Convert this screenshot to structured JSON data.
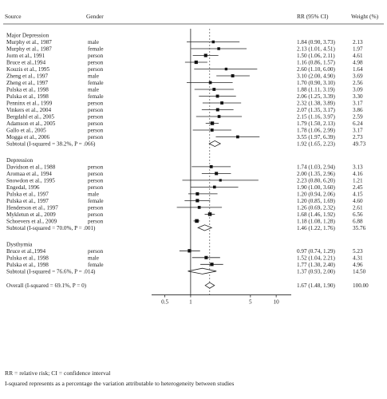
{
  "header": {
    "source": "Source",
    "gender": "Gender",
    "rr": "RR (95% CI)",
    "weight": "Weight (%)"
  },
  "chart_data": {
    "type": "forest",
    "x_scale": "log",
    "xlim": [
      0.35,
      15
    ],
    "reference_line": 1,
    "x_ticks": [
      0.5,
      1,
      5,
      10
    ],
    "groups": [
      {
        "name": "Major Depression",
        "studies": [
          {
            "source": "Murphy et al., 1987",
            "gender": "male",
            "rr": 1.84,
            "lo": 0.9,
            "hi": 3.73,
            "rr_text": "1.84 (0.90, 3.73)",
            "weight": "2.13"
          },
          {
            "source": "Murphy et al., 1987",
            "gender": "female",
            "rr": 2.13,
            "lo": 1.01,
            "hi": 4.51,
            "rr_text": "2.13 (1.01, 4.51)",
            "weight": "1.97"
          },
          {
            "source": "Jorm et al., 1991",
            "gender": "person",
            "rr": 1.5,
            "lo": 1.06,
            "hi": 2.11,
            "rr_text": "1.50 (1.06, 2.11)",
            "weight": "4.61"
          },
          {
            "source": "Bruce et al.,1994",
            "gender": "person",
            "rr": 1.16,
            "lo": 0.86,
            "hi": 1.57,
            "rr_text": "1.16 (0.86, 1.57)",
            "weight": "4.98"
          },
          {
            "source": "Kouzis et al., 1995",
            "gender": "person",
            "rr": 2.6,
            "lo": 1.1,
            "hi": 6.0,
            "rr_text": "2.60 (1.10, 6.00)",
            "weight": "1.64"
          },
          {
            "source": "Zheng et al., 1997",
            "gender": "male",
            "rr": 3.1,
            "lo": 2.0,
            "hi": 4.9,
            "rr_text": "3.10 (2.00, 4.90)",
            "weight": "3.69"
          },
          {
            "source": "Zheng et al., 1997",
            "gender": "female",
            "rr": 1.7,
            "lo": 0.9,
            "hi": 3.1,
            "rr_text": "1.70 (0.90, 3.10)",
            "weight": "2.56"
          },
          {
            "source": "Pulska et al., 1998",
            "gender": "male",
            "rr": 1.88,
            "lo": 1.11,
            "hi": 3.19,
            "rr_text": "1.88 (1.11, 3.19)",
            "weight": "3.09"
          },
          {
            "source": "Pulska et al., 1998",
            "gender": "female",
            "rr": 2.06,
            "lo": 1.25,
            "hi": 3.39,
            "rr_text": "2.06 (1.25, 3.39)",
            "weight": "3.30"
          },
          {
            "source": "Penninx et al., 1999",
            "gender": "person",
            "rr": 2.32,
            "lo": 1.38,
            "hi": 3.89,
            "rr_text": "2.32 (1.38, 3.89)",
            "weight": "3.17"
          },
          {
            "source": "Vinkers et al., 2004",
            "gender": "person",
            "rr": 2.07,
            "lo": 1.35,
            "hi": 3.17,
            "rr_text": "2.07 (1.35, 3.17)",
            "weight": "3.86"
          },
          {
            "source": "Bergdahl et al., 2005",
            "gender": "person",
            "rr": 2.15,
            "lo": 1.16,
            "hi": 3.97,
            "rr_text": "2.15 (1.16, 3.97)",
            "weight": "2.59"
          },
          {
            "source": "Adamson et al., 2005",
            "gender": "person",
            "rr": 1.79,
            "lo": 1.5,
            "hi": 2.13,
            "rr_text": "1.79 (1.50, 2.13)",
            "weight": "6.24"
          },
          {
            "source": "Gallo et al., 2005",
            "gender": "person",
            "rr": 1.78,
            "lo": 1.06,
            "hi": 2.99,
            "rr_text": "1.78 (1.06, 2.99)",
            "weight": "3.17"
          },
          {
            "source": "Mogga et al., 2006",
            "gender": "person",
            "rr": 3.55,
            "lo": 1.97,
            "hi": 6.39,
            "rr_text": "3.55 (1.97, 6.39)",
            "weight": "2.73"
          }
        ],
        "subtotal": {
          "label": "Subtotal (I-squared = 38.2%, P = .066)",
          "rr": 1.92,
          "lo": 1.65,
          "hi": 2.23,
          "rr_text": "1.92 (1.65, 2.23)",
          "weight": "49.73"
        }
      },
      {
        "name": "Depression",
        "studies": [
          {
            "source": "Davidson et al., 1988",
            "gender": "person",
            "rr": 1.74,
            "lo": 1.03,
            "hi": 2.94,
            "rr_text": "1.74 (1.03, 2.94)",
            "weight": "3.13"
          },
          {
            "source": "Aromaa et al., 1994",
            "gender": "person",
            "rr": 2.0,
            "lo": 1.35,
            "hi": 2.96,
            "rr_text": "2.00 (1.35, 2.96)",
            "weight": "4.16"
          },
          {
            "source": "Snowdon et al., 1995",
            "gender": "person",
            "rr": 2.23,
            "lo": 0.8,
            "hi": 6.2,
            "rr_text": "2.23 (0.80, 6.20)",
            "weight": "1.21"
          },
          {
            "source": "Engedal, 1996",
            "gender": "person",
            "rr": 1.9,
            "lo": 1.0,
            "hi": 3.6,
            "rr_text": "1.90 (1.00, 3.60)",
            "weight": "2.45"
          },
          {
            "source": "Pulska et al., 1997",
            "gender": "male",
            "rr": 1.2,
            "lo": 0.94,
            "hi": 2.06,
            "rr_text": "1.20 (0.94, 2.06)",
            "weight": "4.15"
          },
          {
            "source": "Pulska et al., 1997",
            "gender": "female",
            "rr": 1.2,
            "lo": 0.85,
            "hi": 1.69,
            "rr_text": "1.20 (0.85, 1.69)",
            "weight": "4.60"
          },
          {
            "source": "Henderson et al., 1997",
            "gender": "person",
            "rr": 1.26,
            "lo": 0.69,
            "hi": 2.32,
            "rr_text": "1.26 (0.69, 2.32)",
            "weight": "2.61"
          },
          {
            "source": "Mykletun et al., 2009",
            "gender": "person",
            "rr": 1.68,
            "lo": 1.46,
            "hi": 1.92,
            "rr_text": "1.68 (1.46, 1.92)",
            "weight": "6.56"
          },
          {
            "source": "Schoevers et al., 2009",
            "gender": "person",
            "rr": 1.18,
            "lo": 1.08,
            "hi": 1.28,
            "rr_text": "1.18 (1.08, 1.28)",
            "weight": "6.88"
          }
        ],
        "subtotal": {
          "label": "Subtotal (I-squared = 70.0%, P = .001)",
          "rr": 1.46,
          "lo": 1.22,
          "hi": 1.76,
          "rr_text": "1.46 (1.22, 1.76)",
          "weight": "35.76"
        }
      },
      {
        "name": "Dysthymia",
        "studies": [
          {
            "source": "Bruce et al.,1994",
            "gender": "person",
            "rr": 0.97,
            "lo": 0.74,
            "hi": 1.29,
            "rr_text": "0.97 (0.74, 1.29)",
            "weight": "5.23"
          },
          {
            "source": "Pulska et al., 1998",
            "gender": "male",
            "rr": 1.52,
            "lo": 1.04,
            "hi": 2.21,
            "rr_text": "1.52 (1.04, 2.21)",
            "weight": "4.31"
          },
          {
            "source": "Pulska et al., 1998",
            "gender": "female",
            "rr": 1.77,
            "lo": 1.3,
            "hi": 2.4,
            "rr_text": "1.77 (1.30, 2.40)",
            "weight": "4.96"
          }
        ],
        "subtotal": {
          "label": "Subtotal (I-squared = 76.6%, P = .014)",
          "rr": 1.37,
          "lo": 0.93,
          "hi": 2.0,
          "rr_text": "1.37 (0.93, 2.00)",
          "weight": "14.50"
        }
      }
    ],
    "overall": {
      "label": "Overall (I-squared = 69.1%, P = 0)",
      "rr": 1.67,
      "lo": 1.48,
      "hi": 1.9,
      "rr_text": "1.67 (1.48, 1.90)",
      "weight": "100.00"
    }
  },
  "footnotes": {
    "line1": "RR = relative risk; CI = confidence interval",
    "line2": "I-squared represents as a percentage the variation attributable to heterogeneity between studies"
  }
}
